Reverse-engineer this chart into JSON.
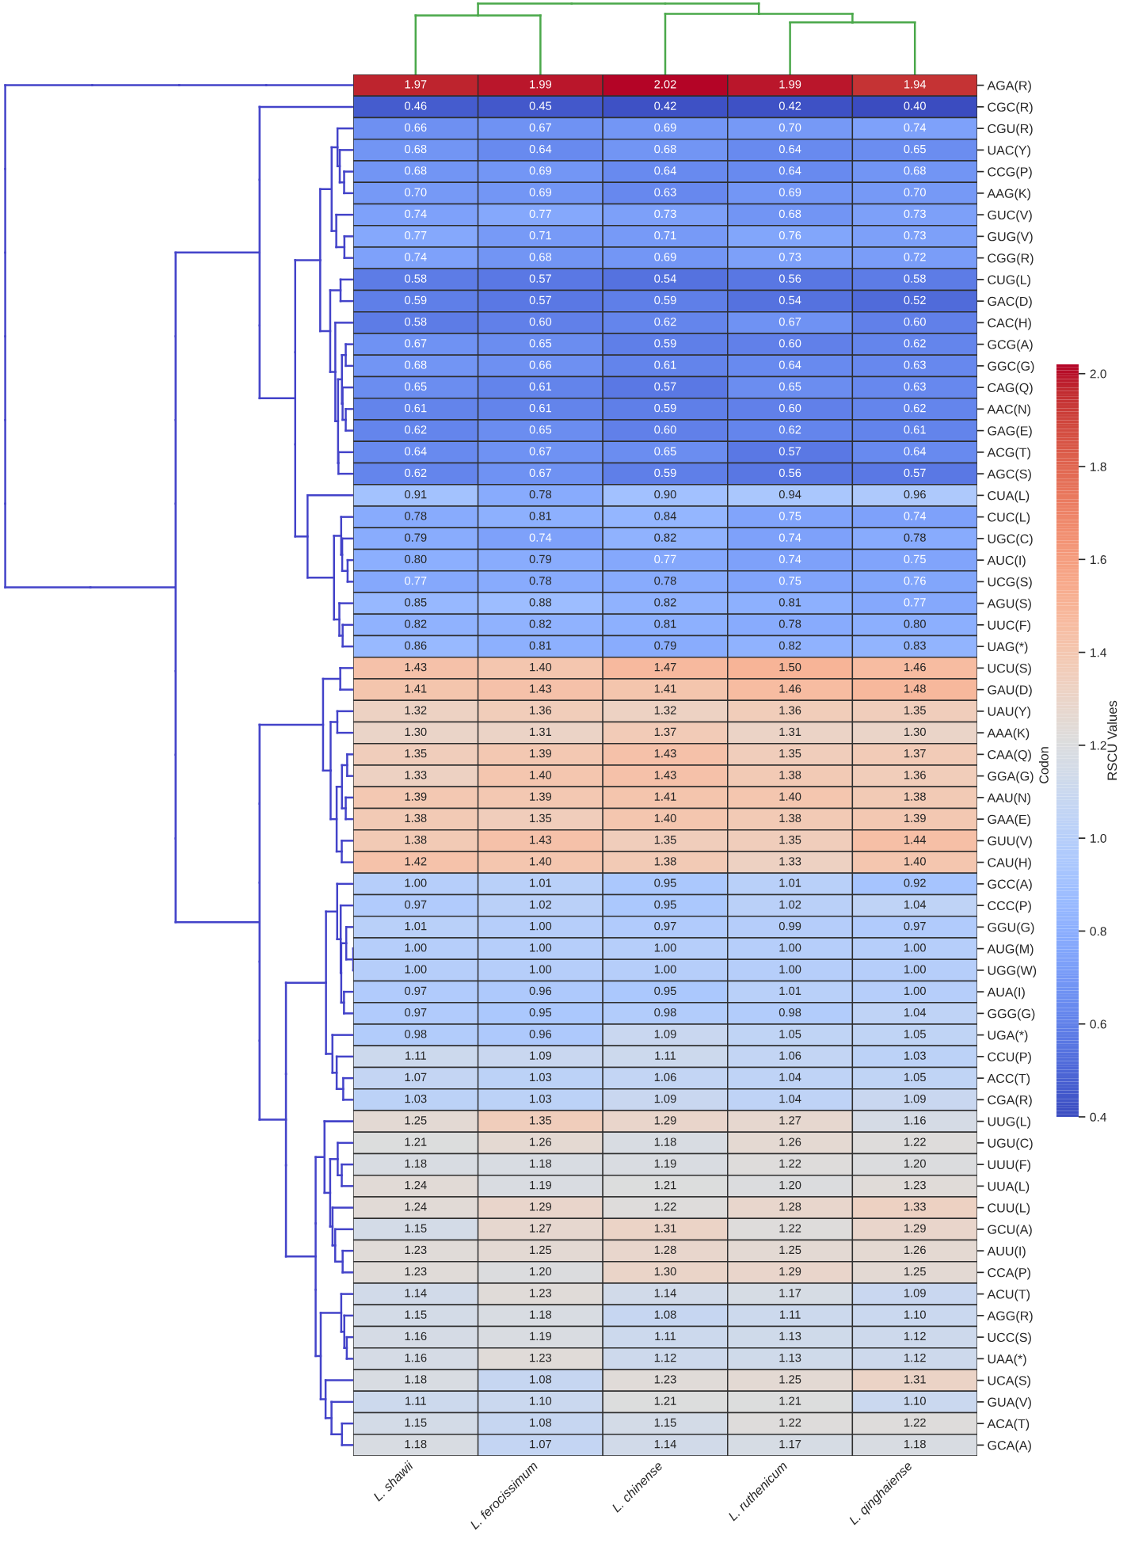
{
  "chart_data": {
    "type": "heatmap",
    "categories": [
      "L. shawii",
      "L. ferocissimum",
      "L. chinense",
      "L. ruthenicum",
      "L. qinghaiense"
    ],
    "y_categories": [
      "AGA(R)",
      "CGC(R)",
      "CGU(R)",
      "UAC(Y)",
      "CCG(P)",
      "AAG(K)",
      "GUC(V)",
      "GUG(V)",
      "CGG(R)",
      "CUG(L)",
      "GAC(D)",
      "CAC(H)",
      "GCG(A)",
      "GGC(G)",
      "CAG(Q)",
      "AAC(N)",
      "GAG(E)",
      "ACG(T)",
      "AGC(S)",
      "CUA(L)",
      "CUC(L)",
      "UGC(C)",
      "AUC(I)",
      "UCG(S)",
      "AGU(S)",
      "UUC(F)",
      "UAG(*)",
      "UCU(S)",
      "GAU(D)",
      "UAU(Y)",
      "AAA(K)",
      "CAA(Q)",
      "GGA(G)",
      "AAU(N)",
      "GAA(E)",
      "GUU(V)",
      "CAU(H)",
      "GCC(A)",
      "CCC(P)",
      "GGU(G)",
      "AUG(M)",
      "UGG(W)",
      "AUA(I)",
      "GGG(G)",
      "UGA(*)",
      "CCU(P)",
      "ACC(T)",
      "CGA(R)",
      "UUG(L)",
      "UGU(C)",
      "UUU(F)",
      "UUA(L)",
      "CUU(L)",
      "GCU(A)",
      "AUU(I)",
      "CCA(P)",
      "ACU(T)",
      "AGG(R)",
      "UCC(S)",
      "UAA(*)",
      "UCA(S)",
      "GUA(V)",
      "ACA(T)",
      "GCA(A)"
    ],
    "cells": [
      [
        1.97,
        1.99,
        2.02,
        1.99,
        1.94
      ],
      [
        0.46,
        0.45,
        0.42,
        0.42,
        0.4
      ],
      [
        0.66,
        0.67,
        0.69,
        0.7,
        0.74
      ],
      [
        0.68,
        0.64,
        0.68,
        0.64,
        0.65
      ],
      [
        0.68,
        0.69,
        0.64,
        0.64,
        0.68
      ],
      [
        0.7,
        0.69,
        0.63,
        0.69,
        0.7
      ],
      [
        0.74,
        0.77,
        0.73,
        0.68,
        0.73
      ],
      [
        0.77,
        0.71,
        0.71,
        0.76,
        0.73
      ],
      [
        0.74,
        0.68,
        0.69,
        0.73,
        0.72
      ],
      [
        0.58,
        0.57,
        0.54,
        0.56,
        0.58
      ],
      [
        0.59,
        0.57,
        0.59,
        0.54,
        0.52
      ],
      [
        0.58,
        0.6,
        0.62,
        0.67,
        0.6
      ],
      [
        0.67,
        0.65,
        0.59,
        0.6,
        0.62
      ],
      [
        0.68,
        0.66,
        0.61,
        0.64,
        0.63
      ],
      [
        0.65,
        0.61,
        0.57,
        0.65,
        0.63
      ],
      [
        0.61,
        0.61,
        0.59,
        0.6,
        0.62
      ],
      [
        0.62,
        0.65,
        0.6,
        0.62,
        0.61
      ],
      [
        0.64,
        0.67,
        0.65,
        0.57,
        0.64
      ],
      [
        0.62,
        0.67,
        0.59,
        0.56,
        0.57
      ],
      [
        0.91,
        0.78,
        0.9,
        0.94,
        0.96
      ],
      [
        0.78,
        0.81,
        0.84,
        0.75,
        0.74
      ],
      [
        0.79,
        0.74,
        0.82,
        0.74,
        0.78
      ],
      [
        0.8,
        0.79,
        0.77,
        0.74,
        0.75
      ],
      [
        0.77,
        0.78,
        0.78,
        0.75,
        0.76
      ],
      [
        0.85,
        0.88,
        0.82,
        0.81,
        0.77
      ],
      [
        0.82,
        0.82,
        0.81,
        0.78,
        0.8
      ],
      [
        0.86,
        0.81,
        0.79,
        0.82,
        0.83
      ],
      [
        1.43,
        1.4,
        1.47,
        1.5,
        1.46
      ],
      [
        1.41,
        1.43,
        1.41,
        1.46,
        1.48
      ],
      [
        1.32,
        1.36,
        1.32,
        1.36,
        1.35
      ],
      [
        1.3,
        1.31,
        1.37,
        1.31,
        1.3
      ],
      [
        1.35,
        1.39,
        1.43,
        1.35,
        1.37
      ],
      [
        1.33,
        1.4,
        1.43,
        1.38,
        1.36
      ],
      [
        1.39,
        1.39,
        1.41,
        1.4,
        1.38
      ],
      [
        1.38,
        1.35,
        1.4,
        1.38,
        1.39
      ],
      [
        1.38,
        1.43,
        1.35,
        1.35,
        1.44
      ],
      [
        1.42,
        1.4,
        1.38,
        1.33,
        1.4
      ],
      [
        1.0,
        1.01,
        0.95,
        1.01,
        0.92
      ],
      [
        0.97,
        1.02,
        0.95,
        1.02,
        1.04
      ],
      [
        1.01,
        1.0,
        0.97,
        0.99,
        0.97
      ],
      [
        1.0,
        1.0,
        1.0,
        1.0,
        1.0
      ],
      [
        1.0,
        1.0,
        1.0,
        1.0,
        1.0
      ],
      [
        0.97,
        0.96,
        0.95,
        1.01,
        1.0
      ],
      [
        0.97,
        0.95,
        0.98,
        0.98,
        1.04
      ],
      [
        0.98,
        0.96,
        1.09,
        1.05,
        1.05
      ],
      [
        1.11,
        1.09,
        1.11,
        1.06,
        1.03
      ],
      [
        1.07,
        1.03,
        1.06,
        1.04,
        1.05
      ],
      [
        1.03,
        1.03,
        1.09,
        1.04,
        1.09
      ],
      [
        1.25,
        1.35,
        1.29,
        1.27,
        1.16
      ],
      [
        1.21,
        1.26,
        1.18,
        1.26,
        1.22
      ],
      [
        1.18,
        1.18,
        1.19,
        1.22,
        1.2
      ],
      [
        1.24,
        1.19,
        1.21,
        1.2,
        1.23
      ],
      [
        1.24,
        1.29,
        1.22,
        1.28,
        1.33
      ],
      [
        1.15,
        1.27,
        1.31,
        1.22,
        1.29
      ],
      [
        1.23,
        1.25,
        1.28,
        1.25,
        1.26
      ],
      [
        1.23,
        1.2,
        1.3,
        1.29,
        1.25
      ],
      [
        1.14,
        1.23,
        1.14,
        1.17,
        1.09
      ],
      [
        1.15,
        1.18,
        1.08,
        1.11,
        1.1
      ],
      [
        1.16,
        1.19,
        1.11,
        1.13,
        1.12
      ],
      [
        1.16,
        1.23,
        1.12,
        1.13,
        1.12
      ],
      [
        1.18,
        1.08,
        1.23,
        1.25,
        1.31
      ],
      [
        1.11,
        1.1,
        1.21,
        1.21,
        1.1
      ],
      [
        1.15,
        1.08,
        1.15,
        1.22,
        1.22
      ],
      [
        1.18,
        1.07,
        1.14,
        1.17,
        1.18
      ]
    ],
    "cell_labels": [
      [
        "1.97",
        "1.99",
        "2.02",
        "1.99",
        "1.94"
      ],
      [
        "0.46",
        "0.45",
        "0.42",
        "0.42",
        "0.40"
      ],
      [
        "0.66",
        "0.67",
        "0.69",
        "0.70",
        "0.74"
      ],
      [
        "0.68",
        "0.64",
        "0.68",
        "0.64",
        "0.65"
      ],
      [
        "0.68",
        "0.69",
        "0.64",
        "0.64",
        "0.68"
      ],
      [
        "0.70",
        "0.69",
        "0.63",
        "0.69",
        "0.70"
      ],
      [
        "0.74",
        "0.77",
        "0.73",
        "0.68",
        "0.73"
      ],
      [
        "0.77",
        "0.71",
        "0.71",
        "0.76",
        "0.73"
      ],
      [
        "0.74",
        "0.68",
        "0.69",
        "0.73",
        "0.72"
      ],
      [
        "0.58",
        "0.57",
        "0.54",
        "0.56",
        "0.58"
      ],
      [
        "0.59",
        "0.57",
        "0.59",
        "0.54",
        "0.52"
      ],
      [
        "0.58",
        "0.60",
        "0.62",
        "0.67",
        "0.60"
      ],
      [
        "0.67",
        "0.65",
        "0.59",
        "0.60",
        "0.62"
      ],
      [
        "0.68",
        "0.66",
        "0.61",
        "0.64",
        "0.63"
      ],
      [
        "0.65",
        "0.61",
        "0.57",
        "0.65",
        "0.63"
      ],
      [
        "0.61",
        "0.61",
        "0.59",
        "0.60",
        "0.62"
      ],
      [
        "0.62",
        "0.65",
        "0.60",
        "0.62",
        "0.61"
      ],
      [
        "0.64",
        "0.67",
        "0.65",
        "0.57",
        "0.64"
      ],
      [
        "0.62",
        "0.67",
        "0.59",
        "0.56",
        "0.57"
      ],
      [
        "0.91",
        "0.78",
        "0.90",
        "0.94",
        "0.96"
      ],
      [
        "0.78",
        "0.81",
        "0.84",
        "0.75",
        "0.74"
      ],
      [
        "0.79",
        "0.74",
        "0.82",
        "0.74",
        "0.78"
      ],
      [
        "0.80",
        "0.79",
        "0.77",
        "0.74",
        "0.75"
      ],
      [
        "0.77",
        "0.78",
        "0.78",
        "0.75",
        "0.76"
      ],
      [
        "0.85",
        "0.88",
        "0.82",
        "0.81",
        "0.77"
      ],
      [
        "0.82",
        "0.82",
        "0.81",
        "0.78",
        "0.80"
      ],
      [
        "0.86",
        "0.81",
        "0.79",
        "0.82",
        "0.83"
      ],
      [
        "1.43",
        "1.40",
        "1.47",
        "1.50",
        "1.46"
      ],
      [
        "1.41",
        "1.43",
        "1.41",
        "1.46",
        "1.48"
      ],
      [
        "1.32",
        "1.36",
        "1.32",
        "1.36",
        "1.35"
      ],
      [
        "1.30",
        "1.31",
        "1.37",
        "1.31",
        "1.30"
      ],
      [
        "1.35",
        "1.39",
        "1.43",
        "1.35",
        "1.37"
      ],
      [
        "1.33",
        "1.40",
        "1.43",
        "1.38",
        "1.36"
      ],
      [
        "1.39",
        "1.39",
        "1.41",
        "1.40",
        "1.38"
      ],
      [
        "1.38",
        "1.35",
        "1.40",
        "1.38",
        "1.39"
      ],
      [
        "1.38",
        "1.43",
        "1.35",
        "1.35",
        "1.44"
      ],
      [
        "1.42",
        "1.40",
        "1.38",
        "1.33",
        "1.40"
      ],
      [
        "1.00",
        "1.01",
        "0.95",
        "1.01",
        "0.92"
      ],
      [
        "0.97",
        "1.02",
        "0.95",
        "1.02",
        "1.04"
      ],
      [
        "1.01",
        "1.00",
        "0.97",
        "0.99",
        "0.97"
      ],
      [
        "1.00",
        "1.00",
        "1.00",
        "1.00",
        "1.00"
      ],
      [
        "1.00",
        "1.00",
        "1.00",
        "1.00",
        "1.00"
      ],
      [
        "0.97",
        "0.96",
        "0.95",
        "1.01",
        "1.00"
      ],
      [
        "0.97",
        "0.95",
        "0.98",
        "0.98",
        "1.04"
      ],
      [
        "0.98",
        "0.96",
        "1.09",
        "1.05",
        "1.05"
      ],
      [
        "1.11",
        "1.09",
        "1.11",
        "1.06",
        "1.03"
      ],
      [
        "1.07",
        "1.03",
        "1.06",
        "1.04",
        "1.05"
      ],
      [
        "1.03",
        "1.03",
        "1.09",
        "1.04",
        "1.09"
      ],
      [
        "1.25",
        "1.35",
        "1.29",
        "1.27",
        "1.16"
      ],
      [
        "1.21",
        "1.26",
        "1.18",
        "1.26",
        "1.22"
      ],
      [
        "1.18",
        "1.18",
        "1.19",
        "1.22",
        "1.20"
      ],
      [
        "1.24",
        "1.19",
        "1.21",
        "1.20",
        "1.23"
      ],
      [
        "1.24",
        "1.29",
        "1.22",
        "1.28",
        "1.33"
      ],
      [
        "1.15",
        "1.27",
        "1.31",
        "1.22",
        "1.29"
      ],
      [
        "1.23",
        "1.25",
        "1.28",
        "1.25",
        "1.26"
      ],
      [
        "1.23",
        "1.20",
        "1.30",
        "1.29",
        "1.25"
      ],
      [
        "1.14",
        "1.23",
        "1.14",
        "1.17",
        "1.09"
      ],
      [
        "1.15",
        "1.18",
        "1.08",
        "1.11",
        "1.10"
      ],
      [
        "1.16",
        "1.19",
        "1.11",
        "1.13",
        "1.12"
      ],
      [
        "1.16",
        "1.23",
        "1.12",
        "1.13",
        "1.12"
      ],
      [
        "1.18",
        "1.08",
        "1.23",
        "1.25",
        "1.31"
      ],
      [
        "1.11",
        "1.10",
        "1.21",
        "1.21",
        "1.10"
      ],
      [
        "1.15",
        "1.08",
        "1.15",
        "1.22",
        "1.22"
      ],
      [
        "1.18",
        "1.07",
        "1.14",
        "1.17",
        "1.18"
      ]
    ],
    "ylabel": "Codon",
    "clabel": "RSCU Values",
    "clim": [
      0.4,
      2.02
    ],
    "cticks": [
      0.4,
      0.6,
      0.8,
      {
        "value": 1.0,
        "label": "1.0"
      },
      1.2,
      1.4,
      1.6,
      1.8,
      {
        "value": 2.0,
        "label": "2.0"
      }
    ]
  }
}
